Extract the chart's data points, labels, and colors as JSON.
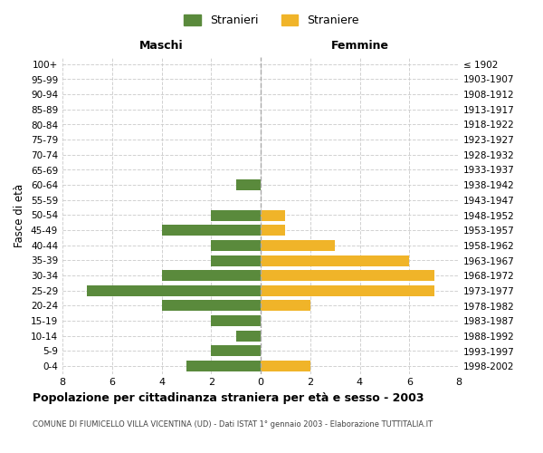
{
  "age_groups": [
    "100+",
    "95-99",
    "90-94",
    "85-89",
    "80-84",
    "75-79",
    "70-74",
    "65-69",
    "60-64",
    "55-59",
    "50-54",
    "45-49",
    "40-44",
    "35-39",
    "30-34",
    "25-29",
    "20-24",
    "15-19",
    "10-14",
    "5-9",
    "0-4"
  ],
  "birth_years": [
    "≤ 1902",
    "1903-1907",
    "1908-1912",
    "1913-1917",
    "1918-1922",
    "1923-1927",
    "1928-1932",
    "1933-1937",
    "1938-1942",
    "1943-1947",
    "1948-1952",
    "1953-1957",
    "1958-1962",
    "1963-1967",
    "1968-1972",
    "1973-1977",
    "1978-1982",
    "1983-1987",
    "1988-1992",
    "1993-1997",
    "1998-2002"
  ],
  "maschi": [
    0,
    0,
    0,
    0,
    0,
    0,
    0,
    0,
    1,
    0,
    2,
    4,
    2,
    2,
    4,
    7,
    4,
    2,
    1,
    2,
    3
  ],
  "femmine": [
    0,
    0,
    0,
    0,
    0,
    0,
    0,
    0,
    0,
    0,
    1,
    1,
    3,
    6,
    7,
    7,
    2,
    0,
    0,
    0,
    2
  ],
  "color_maschi": "#5a8a3c",
  "color_femmine": "#f0b429",
  "xlim": 8,
  "title": "Popolazione per cittadinanza straniera per età e sesso - 2003",
  "subtitle": "COMUNE DI FIUMICELLO VILLA VICENTINA (UD) - Dati ISTAT 1° gennaio 2003 - Elaborazione TUTTITALIA.IT",
  "ylabel_left": "Fasce di età",
  "label_maschi": "Stranieri",
  "label_femmine": "Straniere",
  "header_maschi": "Maschi",
  "header_femmine": "Femmine",
  "bg_color": "#ffffff",
  "grid_color": "#cccccc"
}
